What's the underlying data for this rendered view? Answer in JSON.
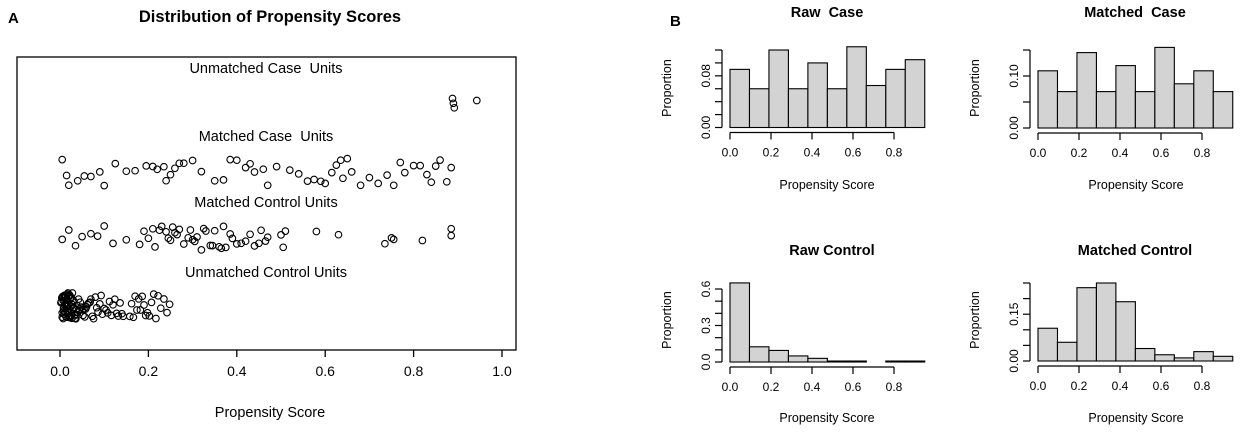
{
  "figure": {
    "panelA_tag": "A",
    "panelB_tag": "B",
    "colors": {
      "bar_fill": "#d3d3d3",
      "stroke": "#000000",
      "background": "#ffffff"
    }
  },
  "chart_data": [
    {
      "type": "scatter",
      "panel": "A",
      "title": "Distribution of Propensity Scores",
      "xlabel": "Propensity Score",
      "xlim": [
        0,
        1
      ],
      "grid": false,
      "x_tick_values": [
        0,
        0.2,
        0.4,
        0.6,
        0.8,
        1.0
      ],
      "x_tick_labels": [
        "0.0",
        "0.2",
        "0.4",
        "0.6",
        "0.8",
        "1.0"
      ],
      "point_style": "open-circle",
      "series": [
        {
          "name": "Unmatched Case  Units",
          "x": [
            0.888,
            0.89,
            0.892,
            0.943
          ],
          "jitter": [
            -0.9,
            0.05,
            0.95,
            -0.5
          ]
        },
        {
          "name": "Matched Case  Units",
          "x": [
            0.005,
            0.015,
            0.02,
            0.04,
            0.055,
            0.07,
            0.09,
            0.1,
            0.125,
            0.15,
            0.17,
            0.195,
            0.21,
            0.22,
            0.235,
            0.24,
            0.25,
            0.26,
            0.27,
            0.28,
            0.3,
            0.32,
            0.35,
            0.37,
            0.385,
            0.4,
            0.42,
            0.43,
            0.44,
            0.46,
            0.47,
            0.49,
            0.52,
            0.54,
            0.56,
            0.575,
            0.59,
            0.6,
            0.615,
            0.625,
            0.635,
            0.64,
            0.65,
            0.66,
            0.68,
            0.7,
            0.72,
            0.74,
            0.755,
            0.77,
            0.78,
            0.8,
            0.815,
            0.83,
            0.84,
            0.85,
            0.86,
            0.875,
            0.885
          ]
        },
        {
          "name": "Matched Control Units",
          "x": [
            0.005,
            0.02,
            0.035,
            0.05,
            0.07,
            0.085,
            0.1,
            0.12,
            0.15,
            0.18,
            0.19,
            0.2,
            0.21,
            0.215,
            0.225,
            0.23,
            0.24,
            0.245,
            0.25,
            0.255,
            0.26,
            0.265,
            0.27,
            0.28,
            0.29,
            0.295,
            0.3,
            0.305,
            0.31,
            0.32,
            0.325,
            0.33,
            0.34,
            0.345,
            0.35,
            0.36,
            0.365,
            0.37,
            0.375,
            0.385,
            0.39,
            0.4,
            0.41,
            0.42,
            0.43,
            0.44,
            0.45,
            0.455,
            0.465,
            0.47,
            0.5,
            0.505,
            0.51,
            0.58,
            0.63,
            0.735,
            0.75,
            0.755,
            0.82,
            0.885,
            0.885
          ]
        },
        {
          "name": "Unmatched Control Units",
          "x": [
            0.002,
            0.003,
            0.004,
            0.005,
            0.005,
            0.006,
            0.006,
            0.007,
            0.007,
            0.008,
            0.008,
            0.009,
            0.009,
            0.01,
            0.01,
            0.01,
            0.011,
            0.011,
            0.012,
            0.012,
            0.013,
            0.013,
            0.014,
            0.014,
            0.015,
            0.015,
            0.016,
            0.016,
            0.017,
            0.017,
            0.018,
            0.018,
            0.019,
            0.02,
            0.02,
            0.021,
            0.021,
            0.022,
            0.023,
            0.023,
            0.024,
            0.025,
            0.025,
            0.026,
            0.027,
            0.028,
            0.029,
            0.03,
            0.031,
            0.032,
            0.033,
            0.034,
            0.035,
            0.036,
            0.037,
            0.038,
            0.039,
            0.04,
            0.042,
            0.044,
            0.046,
            0.048,
            0.05,
            0.052,
            0.054,
            0.056,
            0.058,
            0.06,
            0.062,
            0.065,
            0.068,
            0.07,
            0.073,
            0.076,
            0.08,
            0.083,
            0.086,
            0.09,
            0.093,
            0.096,
            0.1,
            0.104,
            0.108,
            0.112,
            0.116,
            0.12,
            0.124,
            0.128,
            0.132,
            0.136,
            0.14,
            0.143,
            0.158,
            0.162,
            0.166,
            0.17,
            0.174,
            0.178,
            0.182,
            0.186,
            0.19,
            0.194,
            0.198,
            0.202,
            0.207,
            0.212,
            0.217,
            0.222,
            0.228,
            0.235,
            0.242,
            0.248
          ]
        }
      ]
    },
    {
      "type": "bar",
      "panel": "B",
      "layout": "2x2 histogram grid",
      "bin_start": 0,
      "bin_width": 0.095,
      "xlim": [
        0,
        0.95
      ],
      "subplots": [
        {
          "title": "Raw  Case",
          "xlabel": "Propensity Score",
          "ylabel": "Proportion",
          "values": [
            0.09,
            0.06,
            0.12,
            0.06,
            0.1,
            0.06,
            0.125,
            0.065,
            0.09,
            0.105
          ],
          "ylim": [
            0,
            0.12
          ],
          "y_tick_values": [
            0,
            0.02,
            0.04,
            0.06,
            0.08,
            0.1,
            0.12
          ],
          "y_tick_labels": [
            "0.00",
            "",
            "",
            "",
            "0.08",
            "",
            ""
          ],
          "x_tick_values": [
            0,
            0.2,
            0.4,
            0.6,
            0.8
          ],
          "x_tick_labels": [
            "0.0",
            "0.2",
            "0.4",
            "0.6",
            "0.8"
          ],
          "bar_fill": "#d3d3d3"
        },
        {
          "title": "Matched  Case",
          "xlabel": "Propensity Score",
          "ylabel": "Proportion",
          "values": [
            0.11,
            0.07,
            0.145,
            0.07,
            0.12,
            0.07,
            0.155,
            0.085,
            0.11,
            0.07
          ],
          "ylim": [
            0,
            0.15
          ],
          "y_tick_values": [
            0,
            0.05,
            0.1,
            0.15
          ],
          "y_tick_labels": [
            "0.00",
            "",
            "0.10",
            ""
          ],
          "x_tick_values": [
            0,
            0.2,
            0.4,
            0.6,
            0.8
          ],
          "x_tick_labels": [
            "0.0",
            "0.2",
            "0.4",
            "0.6",
            "0.8"
          ],
          "bar_fill": "#d3d3d3"
        },
        {
          "title": "Raw Control",
          "xlabel": "Propensity Score",
          "ylabel": "Proportion",
          "values": [
            0.65,
            0.125,
            0.095,
            0.05,
            0.03,
            0.008,
            0.008,
            0,
            0.008,
            0.008
          ],
          "ylim": [
            0,
            0.6
          ],
          "y_tick_values": [
            0,
            0.1,
            0.2,
            0.3,
            0.4,
            0.5,
            0.6
          ],
          "y_tick_labels": [
            "0.0",
            "",
            "",
            "0.3",
            "",
            "",
            "0.6"
          ],
          "x_tick_values": [
            0,
            0.2,
            0.4,
            0.6,
            0.8
          ],
          "x_tick_labels": [
            "0.0",
            "0.2",
            "0.4",
            "0.6",
            "0.8"
          ],
          "bar_fill": "#d3d3d3"
        },
        {
          "title": "Matched Control",
          "xlabel": "Propensity Score",
          "ylabel": "Proportion",
          "values": [
            0.105,
            0.06,
            0.235,
            0.25,
            0.19,
            0.04,
            0.02,
            0.01,
            0.03,
            0.015
          ],
          "ylim": [
            0,
            0.25
          ],
          "y_tick_values": [
            0,
            0.05,
            0.1,
            0.15,
            0.2,
            0.25
          ],
          "y_tick_labels": [
            "0.00",
            "",
            "",
            "0.15",
            "",
            ""
          ],
          "x_tick_values": [
            0,
            0.2,
            0.4,
            0.6,
            0.8
          ],
          "x_tick_labels": [
            "0.0",
            "0.2",
            "0.4",
            "0.6",
            "0.8"
          ],
          "bar_fill": "#d3d3d3"
        }
      ]
    }
  ]
}
